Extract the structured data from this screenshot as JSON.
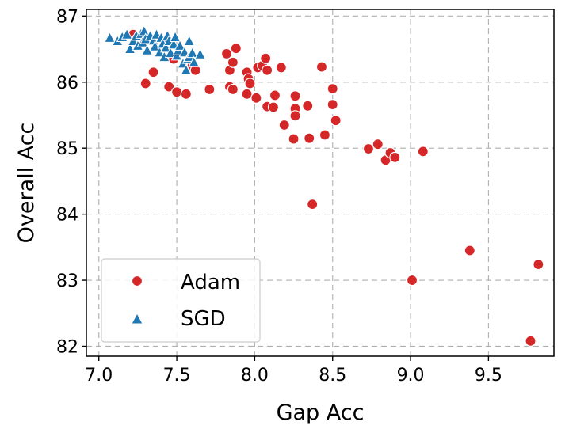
{
  "chart_data": {
    "type": "scatter",
    "title": "",
    "xlabel": "Gap Acc",
    "ylabel": "Overall Acc",
    "xlim": [
      6.92,
      9.92
    ],
    "ylim": [
      81.85,
      87.1
    ],
    "xticks": [
      7.0,
      7.5,
      8.0,
      8.5,
      9.0,
      9.5
    ],
    "xtick_labels": [
      "7.0",
      "7.5",
      "8.0",
      "8.5",
      "9.0",
      "9.5"
    ],
    "yticks": [
      82,
      83,
      84,
      85,
      86,
      87
    ],
    "ytick_labels": [
      "82",
      "83",
      "84",
      "85",
      "86",
      "87"
    ],
    "grid": true,
    "legend_position": "lower-left",
    "series": [
      {
        "name": "Adam",
        "marker": "circle",
        "color": "#d62728",
        "points": [
          [
            7.22,
            86.72
          ],
          [
            7.3,
            85.98
          ],
          [
            7.35,
            86.15
          ],
          [
            7.45,
            85.93
          ],
          [
            7.5,
            85.85
          ],
          [
            7.48,
            86.35
          ],
          [
            7.56,
            85.82
          ],
          [
            7.6,
            86.25
          ],
          [
            7.62,
            86.18
          ],
          [
            7.71,
            85.89
          ],
          [
            7.82,
            86.43
          ],
          [
            7.84,
            86.18
          ],
          [
            7.84,
            85.93
          ],
          [
            7.86,
            85.89
          ],
          [
            7.86,
            86.3
          ],
          [
            7.88,
            86.51
          ],
          [
            7.95,
            86.15
          ],
          [
            7.96,
            86.05
          ],
          [
            7.97,
            85.98
          ],
          [
            7.95,
            85.82
          ],
          [
            8.01,
            85.76
          ],
          [
            8.02,
            86.22
          ],
          [
            8.05,
            86.25
          ],
          [
            8.07,
            86.36
          ],
          [
            8.08,
            86.18
          ],
          [
            8.08,
            85.63
          ],
          [
            8.12,
            85.62
          ],
          [
            8.13,
            85.8
          ],
          [
            8.17,
            86.22
          ],
          [
            8.19,
            85.35
          ],
          [
            8.25,
            85.14
          ],
          [
            8.26,
            85.6
          ],
          [
            8.26,
            85.49
          ],
          [
            8.26,
            85.79
          ],
          [
            8.34,
            85.64
          ],
          [
            8.35,
            85.15
          ],
          [
            8.37,
            84.15
          ],
          [
            8.43,
            86.23
          ],
          [
            8.45,
            85.2
          ],
          [
            8.5,
            85.9
          ],
          [
            8.5,
            85.66
          ],
          [
            8.52,
            85.42
          ],
          [
            8.73,
            84.99
          ],
          [
            8.79,
            85.06
          ],
          [
            8.84,
            84.82
          ],
          [
            8.87,
            84.93
          ],
          [
            8.9,
            84.86
          ],
          [
            9.08,
            84.95
          ],
          [
            9.01,
            83.0
          ],
          [
            9.38,
            83.45
          ],
          [
            9.77,
            82.08
          ],
          [
            9.82,
            83.24
          ]
        ]
      },
      {
        "name": "SGD",
        "marker": "triangle",
        "color": "#1f77b4",
        "points": [
          [
            7.07,
            86.67
          ],
          [
            7.12,
            86.62
          ],
          [
            7.15,
            86.68
          ],
          [
            7.18,
            86.72
          ],
          [
            7.2,
            86.5
          ],
          [
            7.22,
            86.62
          ],
          [
            7.24,
            86.7
          ],
          [
            7.25,
            86.55
          ],
          [
            7.27,
            86.73
          ],
          [
            7.28,
            86.6
          ],
          [
            7.29,
            86.77
          ],
          [
            7.3,
            86.65
          ],
          [
            7.31,
            86.48
          ],
          [
            7.33,
            86.7
          ],
          [
            7.35,
            86.63
          ],
          [
            7.36,
            86.54
          ],
          [
            7.37,
            86.72
          ],
          [
            7.39,
            86.45
          ],
          [
            7.4,
            86.67
          ],
          [
            7.41,
            86.58
          ],
          [
            7.42,
            86.38
          ],
          [
            7.43,
            86.52
          ],
          [
            7.44,
            86.7
          ],
          [
            7.45,
            86.62
          ],
          [
            7.46,
            86.44
          ],
          [
            7.48,
            86.57
          ],
          [
            7.49,
            86.68
          ],
          [
            7.5,
            86.4
          ],
          [
            7.51,
            86.48
          ],
          [
            7.52,
            86.55
          ],
          [
            7.54,
            86.28
          ],
          [
            7.55,
            86.45
          ],
          [
            7.56,
            86.18
          ],
          [
            7.57,
            86.35
          ],
          [
            7.58,
            86.62
          ],
          [
            7.58,
            86.38
          ],
          [
            7.6,
            86.44
          ],
          [
            7.61,
            86.3
          ],
          [
            7.65,
            86.42
          ]
        ]
      }
    ]
  }
}
